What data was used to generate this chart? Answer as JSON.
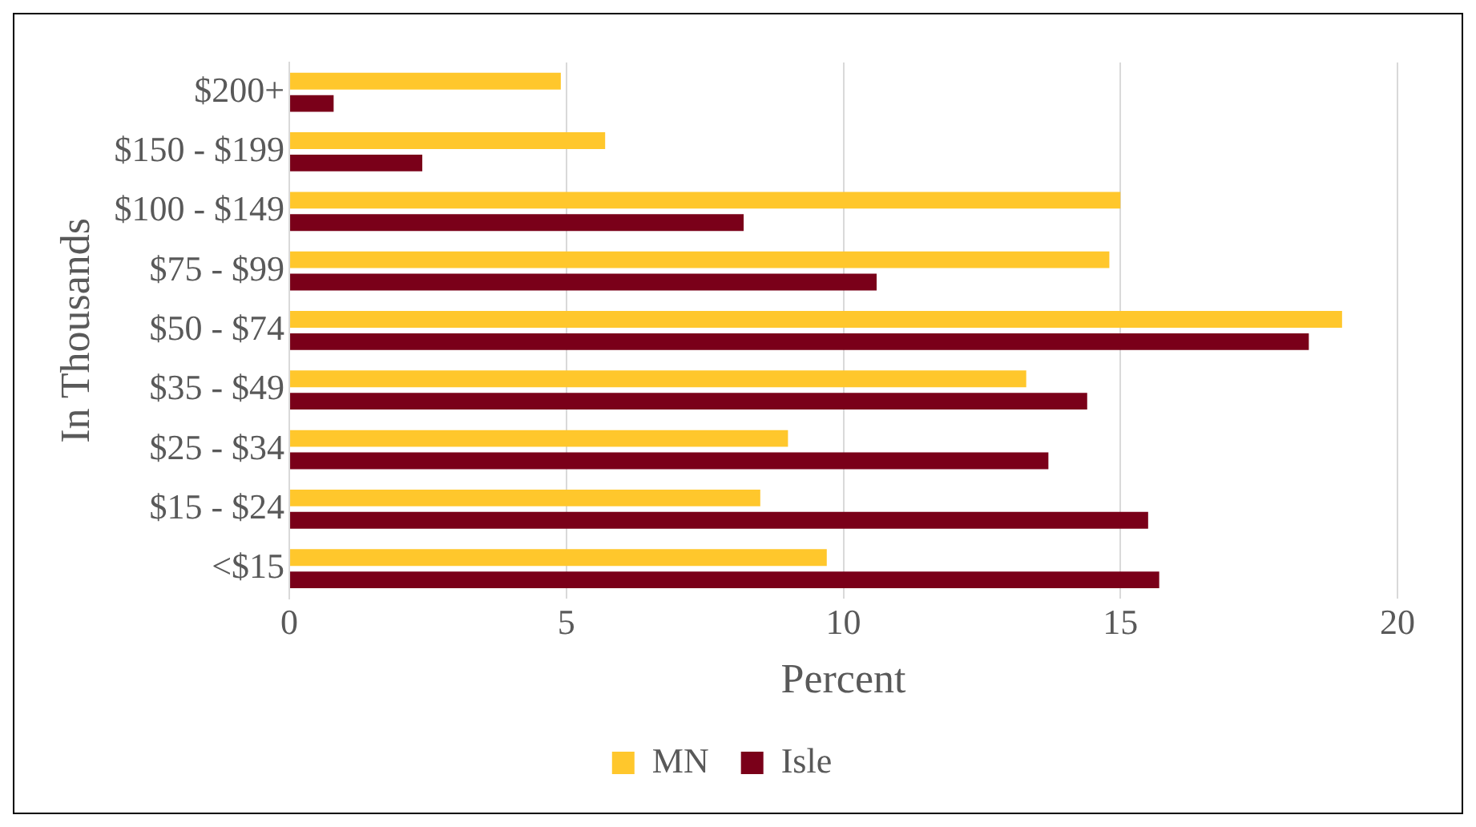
{
  "chart_data": {
    "type": "bar",
    "orientation": "horizontal",
    "xlabel": "Percent",
    "ylabel": "In Thousands",
    "categories": [
      "$200+",
      "$150 - $199",
      "$100 - $149",
      "$75 - $99",
      "$50 - $74",
      "$35 - $49",
      "$25 - $34",
      "$15 - $24",
      "<$15"
    ],
    "series": [
      {
        "name": "MN",
        "color": "#ffc72c",
        "values": [
          4.9,
          5.7,
          15.0,
          14.8,
          19.0,
          13.3,
          9.0,
          8.5,
          9.7
        ]
      },
      {
        "name": "Isle",
        "color": "#7a0019",
        "values": [
          0.8,
          2.4,
          8.2,
          10.6,
          18.4,
          14.4,
          13.7,
          15.5,
          15.7
        ]
      }
    ],
    "xlim": [
      0,
      20
    ],
    "xticks": [
      0,
      5,
      10,
      15,
      20
    ],
    "grid": "x",
    "legend": "bottom"
  }
}
